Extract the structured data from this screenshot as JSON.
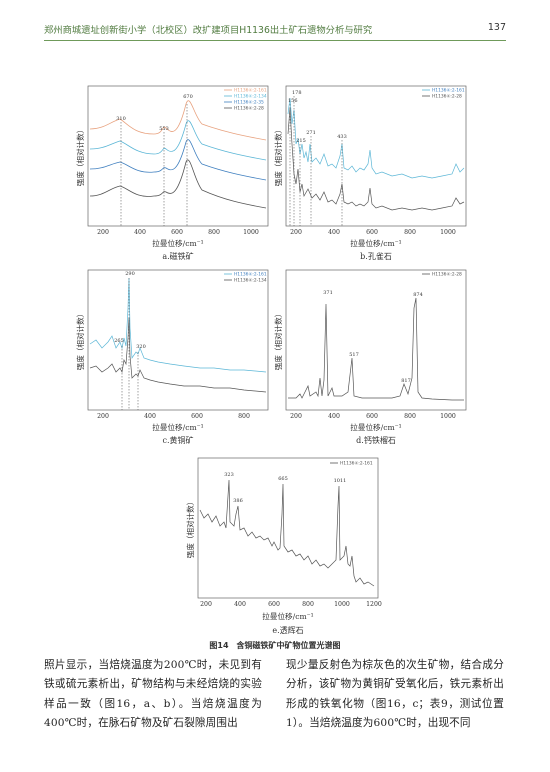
{
  "header": {
    "title": "郑州商城遗址创新街小学（北校区）改扩建项目H1136出土矿石遗物分析与研究",
    "page_number": "137"
  },
  "figure": {
    "caption": "图14　含铜磁铁矿中矿物位置光谱图",
    "panels": [
      {
        "id": "a",
        "sublabel": "a.磁铁矿",
        "xlabel": "拉曼位移/cm⁻¹",
        "ylabel": "强度（相对计数）",
        "legend": [
          "H1136②:2-161",
          "H1136②:2-134",
          "H1136②:2-35",
          "H1136②:2-28"
        ],
        "peak_labels": [
          "310",
          "553",
          "670"
        ],
        "x_ticks": [
          "200",
          "400",
          "600",
          "800",
          "1000"
        ]
      },
      {
        "id": "b",
        "sublabel": "b.孔雀石",
        "xlabel": "拉曼位移/cm⁻¹",
        "ylabel": "强度（相对计数）",
        "legend": [
          "H1136②:2-161",
          "H1136②:2-28"
        ],
        "peak_labels": [
          "156",
          "178",
          "215",
          "271",
          "433"
        ],
        "x_ticks": [
          "200",
          "400",
          "600",
          "800",
          "1000"
        ]
      },
      {
        "id": "c",
        "sublabel": "c.黄铜矿",
        "xlabel": "拉曼位移/cm⁻¹",
        "ylabel": "强度（相对计数）",
        "legend": [
          "H1136②:2-161",
          "H1136②:2-134"
        ],
        "peak_labels": [
          "265",
          "290",
          "320"
        ],
        "x_ticks": [
          "200",
          "400",
          "600",
          "800"
        ]
      },
      {
        "id": "d",
        "sublabel": "d.钙铁榴石",
        "xlabel": "拉曼位移/cm⁻¹",
        "ylabel": "强度（相对计数）",
        "legend": [
          "H1136②:2-28"
        ],
        "peak_labels": [
          "371",
          "517",
          "817",
          "874"
        ],
        "x_ticks": [
          "200",
          "400",
          "600",
          "800",
          "1000"
        ]
      },
      {
        "id": "e",
        "sublabel": "e.透辉石",
        "xlabel": "拉曼位移/cm⁻¹",
        "ylabel": "强度（相对计数）",
        "legend": [
          "H1136②:2-161"
        ],
        "peak_labels": [
          "323",
          "386",
          "665",
          "1011"
        ],
        "x_ticks": [
          "200",
          "400",
          "600",
          "800",
          "1000",
          "1200"
        ]
      }
    ]
  },
  "text": {
    "left": "照片显示，当焙烧温度为200℃时，未见到有铁或硫元素析出，矿物结构与未经焙烧的实验样品一致（图16，a、b）。当焙烧温度为400℃时，在脉石矿物及矿石裂隙周围出",
    "right": "现少量反射色为棕灰色的次生矿物，结合成分分析，该矿物为黄铜矿受氧化后，铁元素析出形成的铁氧化物（图16，c；表9，测试位置1）。当焙烧温度为600℃时，出现不同"
  },
  "colors": {
    "header_green": "#4f7a3e",
    "series_orange": "#e8a27f",
    "series_cyan": "#5bb6d6",
    "series_blue": "#3f7fbf",
    "series_gray": "#555555"
  }
}
